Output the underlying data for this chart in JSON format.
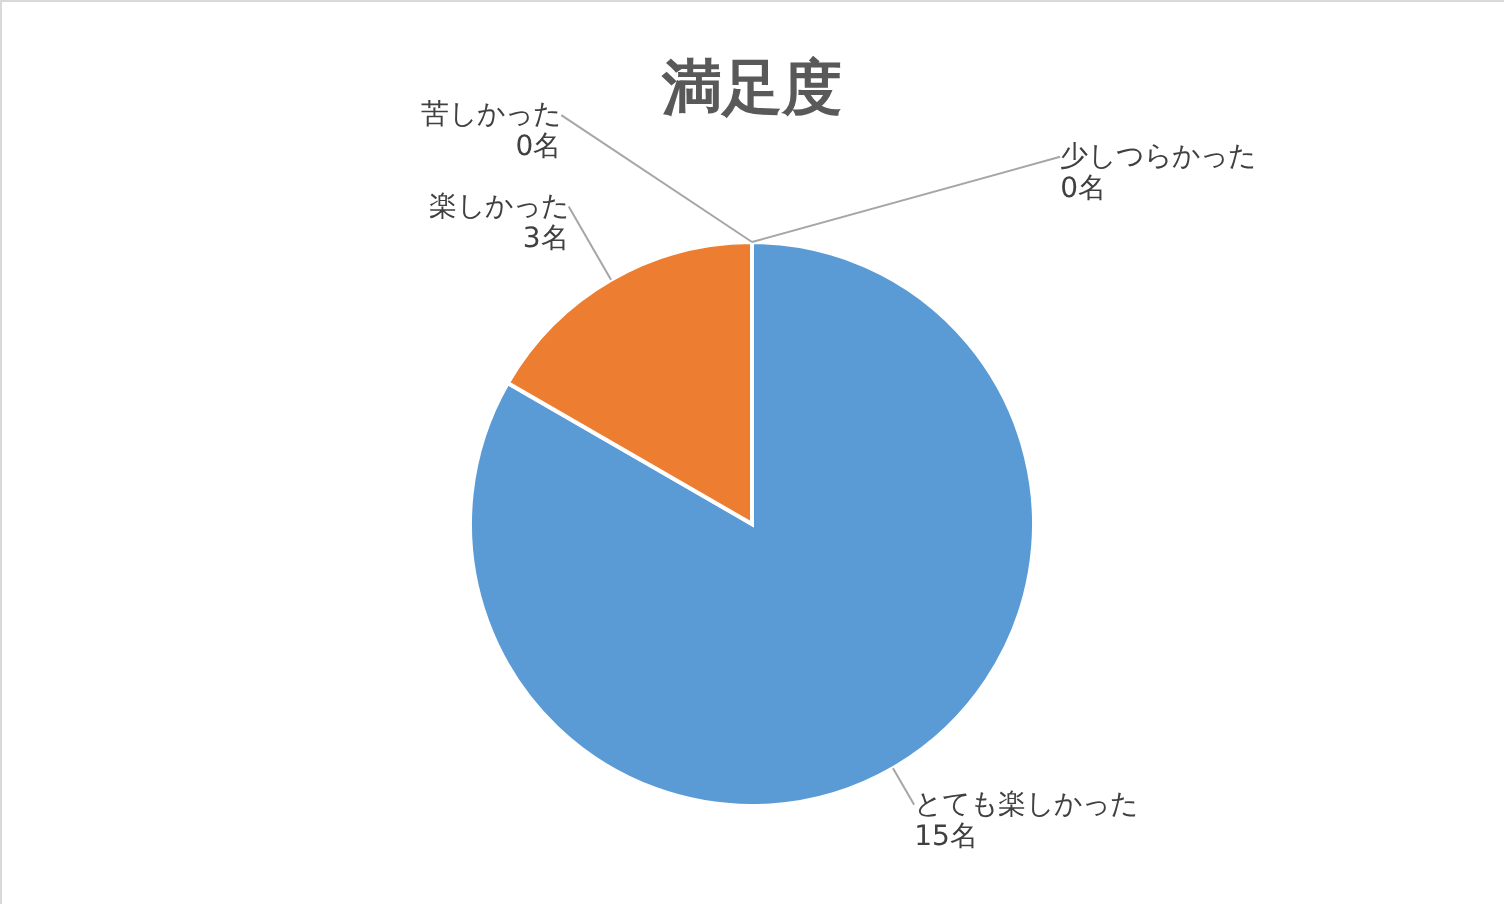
{
  "chart_data": {
    "type": "pie",
    "title": "満足度",
    "categories": [
      "とても楽しかった",
      "楽しかった",
      "苦しかった",
      "少しつらかった"
    ],
    "values": [
      15,
      3,
      0,
      0
    ],
    "colors": [
      "#5b9bd5",
      "#ed7d31",
      "#a5a5a5",
      "#ffc000"
    ],
    "value_labels": [
      "15名",
      "3名",
      "0名",
      "0名"
    ]
  }
}
